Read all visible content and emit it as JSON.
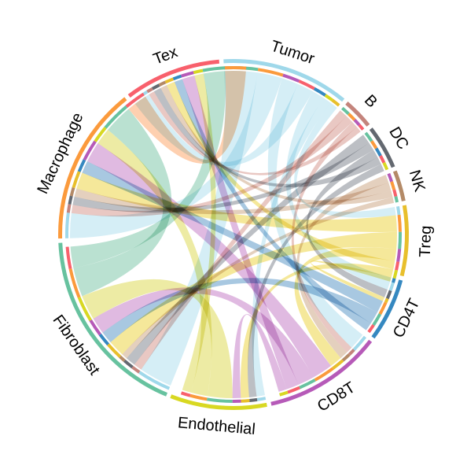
{
  "chart_data": {
    "type": "chord",
    "title": "",
    "sectors": [
      {
        "name": "Tumor",
        "value": 14.5,
        "color": "#9fd8ea",
        "ribbon_color": "#c9e9f4"
      },
      {
        "name": "B",
        "value": 3.5,
        "color": "#c4847c",
        "ribbon_color": "#e3b8b2"
      },
      {
        "name": "DC",
        "value": 5.0,
        "color": "#636870",
        "ribbon_color": "#a9adb3"
      },
      {
        "name": "NK",
        "value": 3.5,
        "color": "#b48a67",
        "ribbon_color": "#dcc3ac"
      },
      {
        "name": "Treg",
        "value": 8.0,
        "color": "#e8bf2c",
        "ribbon_color": "#f2e27d"
      },
      {
        "name": "CD4T",
        "value": 7.2,
        "color": "#3588c0",
        "ribbon_color": "#8fb9d8"
      },
      {
        "name": "CD8T",
        "value": 13.5,
        "color": "#b65ab8",
        "ribbon_color": "#d7a7d8"
      },
      {
        "name": "Endothelial",
        "value": 11.0,
        "color": "#d8d822",
        "ribbon_color": "#e8e68a"
      },
      {
        "name": "Fibroblast",
        "value": 22.0,
        "color": "#67c29f",
        "ribbon_color": "#a6d9c4"
      },
      {
        "name": "Macrophage",
        "value": 18.0,
        "color": "#fb9a3c",
        "ribbon_color": "#fec39a"
      },
      {
        "name": "Tex",
        "value": 11.0,
        "color": "#f8606c",
        "ribbon_color": "#faa9ae"
      }
    ],
    "links": [
      {
        "source": "Tumor",
        "target": "Fibroblast",
        "value": 4.0
      },
      {
        "source": "Tumor",
        "target": "Macrophage",
        "value": 3.0
      },
      {
        "source": "Tumor",
        "target": "CD8T",
        "value": 2.0
      },
      {
        "source": "Tumor",
        "target": "Tex",
        "value": 2.0
      },
      {
        "source": "Tumor",
        "target": "CD4T",
        "value": 1.5
      },
      {
        "source": "Tumor",
        "target": "Endothelial",
        "value": 1.0
      },
      {
        "source": "Tumor",
        "target": "Treg",
        "value": 1.0
      },
      {
        "source": "B",
        "target": "Fibroblast",
        "value": 1.0
      },
      {
        "source": "B",
        "target": "Macrophage",
        "value": 1.0
      },
      {
        "source": "B",
        "target": "CD8T",
        "value": 0.8
      },
      {
        "source": "B",
        "target": "Tex",
        "value": 0.7
      },
      {
        "source": "DC",
        "target": "Fibroblast",
        "value": 1.2
      },
      {
        "source": "DC",
        "target": "Macrophage",
        "value": 1.0
      },
      {
        "source": "DC",
        "target": "CD4T",
        "value": 1.0
      },
      {
        "source": "DC",
        "target": "Tex",
        "value": 0.9
      },
      {
        "source": "DC",
        "target": "Endothelial",
        "value": 0.9
      },
      {
        "source": "NK",
        "target": "CD8T",
        "value": 1.0
      },
      {
        "source": "NK",
        "target": "Macrophage",
        "value": 1.0
      },
      {
        "source": "NK",
        "target": "Tex",
        "value": 0.8
      },
      {
        "source": "NK",
        "target": "Fibroblast",
        "value": 0.7
      },
      {
        "source": "Treg",
        "target": "Macrophage",
        "value": 2.0
      },
      {
        "source": "Treg",
        "target": "Fibroblast",
        "value": 2.0
      },
      {
        "source": "Treg",
        "target": "CD8T",
        "value": 1.5
      },
      {
        "source": "Treg",
        "target": "Tex",
        "value": 1.0
      },
      {
        "source": "Treg",
        "target": "Endothelial",
        "value": 1.0
      },
      {
        "source": "Treg",
        "target": "CD4T",
        "value": 0.5
      },
      {
        "source": "CD4T",
        "target": "Macrophage",
        "value": 1.5
      },
      {
        "source": "CD4T",
        "target": "Fibroblast",
        "value": 1.5
      },
      {
        "source": "CD4T",
        "target": "Tex",
        "value": 1.0
      },
      {
        "source": "CD8T",
        "target": "Macrophage",
        "value": 2.5
      },
      {
        "source": "CD8T",
        "target": "Fibroblast",
        "value": 2.0
      },
      {
        "source": "CD8T",
        "target": "Tex",
        "value": 1.5
      },
      {
        "source": "CD8T",
        "target": "Endothelial",
        "value": 1.0
      },
      {
        "source": "Endothelial",
        "target": "Fibroblast",
        "value": 3.0
      },
      {
        "source": "Endothelial",
        "target": "Macrophage",
        "value": 2.0
      },
      {
        "source": "Endothelial",
        "target": "Tex",
        "value": 1.1
      },
      {
        "source": "Fibroblast",
        "target": "Macrophage",
        "value": 3.5
      },
      {
        "source": "Fibroblast",
        "target": "Tex",
        "value": 2.6
      },
      {
        "source": "Macrophage",
        "target": "Tex",
        "value": 2.5
      }
    ]
  }
}
